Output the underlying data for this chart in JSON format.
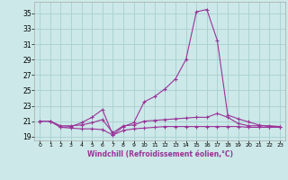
{
  "xlabel": "Windchill (Refroidissement éolien,°C)",
  "x": [
    0,
    1,
    2,
    3,
    4,
    5,
    6,
    7,
    8,
    9,
    10,
    11,
    12,
    13,
    14,
    15,
    16,
    17,
    18,
    19,
    20,
    21,
    22,
    23
  ],
  "line1": [
    21.0,
    21.0,
    20.2,
    20.1,
    20.0,
    20.0,
    19.9,
    19.2,
    19.8,
    20.0,
    20.1,
    20.2,
    20.3,
    20.3,
    20.3,
    20.3,
    20.3,
    20.3,
    20.3,
    20.3,
    20.2,
    20.2,
    20.2,
    20.2
  ],
  "line2": [
    21.0,
    21.0,
    20.4,
    20.4,
    20.5,
    20.8,
    21.2,
    19.5,
    20.4,
    20.5,
    21.0,
    21.1,
    21.2,
    21.3,
    21.4,
    21.5,
    21.5,
    22.0,
    21.5,
    20.7,
    20.4,
    20.4,
    20.4,
    20.3
  ],
  "line3": [
    21.0,
    21.0,
    20.2,
    20.3,
    20.8,
    21.5,
    22.5,
    19.2,
    20.3,
    20.8,
    23.5,
    24.2,
    25.2,
    26.5,
    29.0,
    35.2,
    35.5,
    31.5,
    21.8,
    21.3,
    20.9,
    20.5,
    20.3,
    20.3
  ],
  "line_color": "#993399",
  "bg_color": "#cce8e8",
  "grid_color": "#a8d0d0",
  "ylim": [
    18.5,
    36.5
  ],
  "xlim": [
    -0.5,
    23.5
  ],
  "yticks": [
    19,
    21,
    23,
    25,
    27,
    29,
    31,
    33,
    35
  ],
  "xticks": [
    0,
    1,
    2,
    3,
    4,
    5,
    6,
    7,
    8,
    9,
    10,
    11,
    12,
    13,
    14,
    15,
    16,
    17,
    18,
    19,
    20,
    21,
    22,
    23
  ]
}
